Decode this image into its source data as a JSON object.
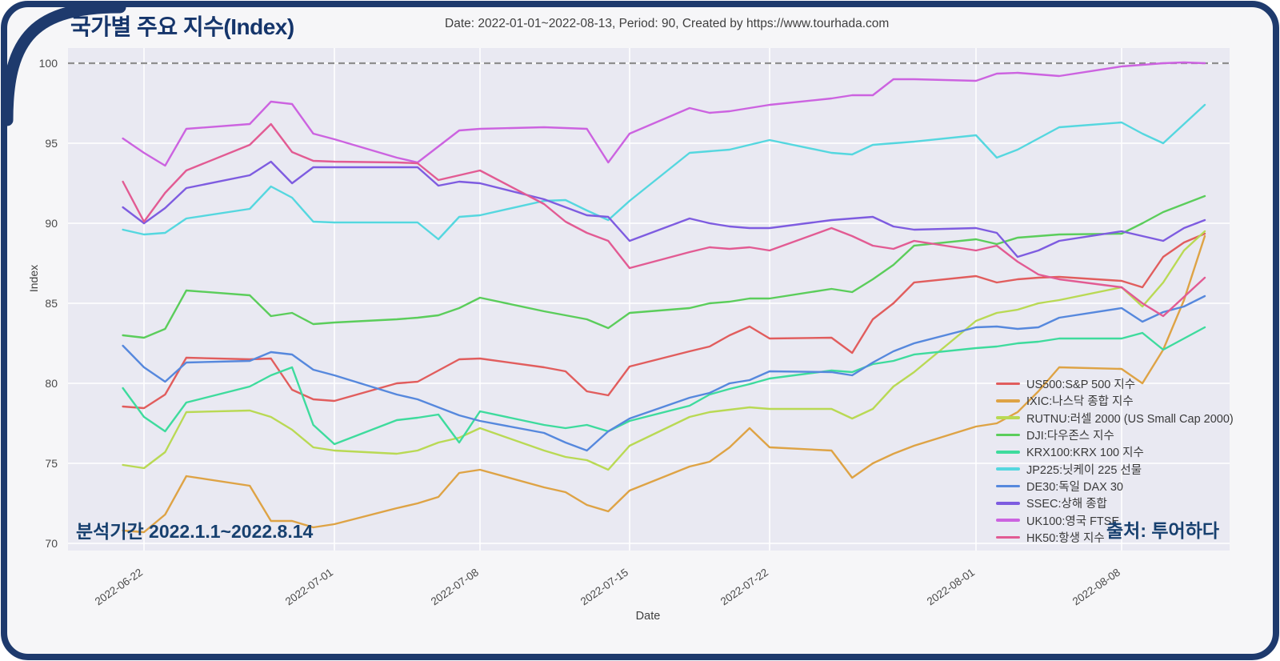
{
  "header": {
    "title": "국가별 주요 지수(Index)",
    "subtitle": "Date: 2022-01-01~2022-08-13, Period: 90, Created by https://www.tourhada.com"
  },
  "annotations": {
    "period_note": "분석기간 2022.1.1~2022.8.14",
    "source_note": "출처: 투어하다"
  },
  "frame": {
    "border_color": "#1e3a6d",
    "inner_background": "#f6f6f8"
  },
  "chart_data": {
    "type": "line",
    "xlabel": "Date",
    "ylabel": "Index",
    "ylim": [
      69.55,
      100.95
    ],
    "yticks": [
      70,
      75,
      80,
      85,
      90,
      95,
      100
    ],
    "grid": true,
    "plot_background": "#e9e9f2",
    "grid_color": "#ffffff",
    "reference_line": {
      "y": 100,
      "style": "dashed",
      "color": "#8f8f8f"
    },
    "legend_position": "lower right",
    "x_tick_labels": [
      "2022-06-22",
      "2022-07-01",
      "2022-07-08",
      "2022-07-15",
      "2022-07-22",
      "2022-08-01",
      "2022-08-08"
    ],
    "x_tick_cal": [
      1,
      10,
      17,
      24,
      31,
      41,
      48
    ],
    "dates": [
      "06-21",
      "06-22",
      "06-23",
      "06-24",
      "06-27",
      "06-28",
      "06-29",
      "06-30",
      "07-01",
      "07-04",
      "07-05",
      "07-06",
      "07-07",
      "07-08",
      "07-11",
      "07-12",
      "07-13",
      "07-14",
      "07-15",
      "07-18",
      "07-19",
      "07-20",
      "07-21",
      "07-22",
      "07-25",
      "07-26",
      "07-27",
      "07-28",
      "07-29",
      "08-01",
      "08-02",
      "08-03",
      "08-04",
      "08-05",
      "08-08",
      "08-09",
      "08-10",
      "08-11",
      "08-12"
    ],
    "cal_days": [
      0,
      1,
      2,
      3,
      6,
      7,
      8,
      9,
      10,
      13,
      14,
      15,
      16,
      17,
      20,
      21,
      22,
      23,
      24,
      27,
      28,
      29,
      30,
      31,
      34,
      35,
      36,
      37,
      38,
      41,
      42,
      43,
      44,
      45,
      48,
      49,
      50,
      51,
      52
    ],
    "series": [
      {
        "id": "US500",
        "label": "US500:S&P 500 지수",
        "color": "#e15d5d",
        "values": [
          78.55,
          78.45,
          79.3,
          81.6,
          81.5,
          81.55,
          79.6,
          79.0,
          78.9,
          80.0,
          80.1,
          80.8,
          81.5,
          81.55,
          81.0,
          80.75,
          79.5,
          79.25,
          81.05,
          82.0,
          82.3,
          83.0,
          83.55,
          82.8,
          82.85,
          81.9,
          84.0,
          85.0,
          86.3,
          86.7,
          86.3,
          86.5,
          86.6,
          86.65,
          86.4,
          86.0,
          87.9,
          88.8,
          89.35
        ]
      },
      {
        "id": "IXIC",
        "label": "IXIC:나스닥 종합 지수",
        "color": "#dea345",
        "values": [
          70.8,
          70.7,
          71.8,
          74.2,
          73.6,
          71.4,
          71.4,
          71.0,
          71.2,
          72.2,
          72.5,
          72.9,
          74.4,
          74.6,
          73.5,
          73.2,
          72.4,
          72.0,
          73.3,
          74.8,
          75.1,
          76.0,
          77.2,
          76.0,
          75.8,
          74.1,
          75.0,
          75.6,
          76.1,
          77.3,
          77.5,
          78.2,
          79.5,
          81.0,
          80.9,
          80.0,
          82.1,
          85.2,
          89.2
        ]
      },
      {
        "id": "RUTNU",
        "label": "RUTNU:러셀 2000 (US Small Cap 2000)",
        "color": "#b9d954",
        "values": [
          74.9,
          74.7,
          75.7,
          78.2,
          78.3,
          77.9,
          77.1,
          76.0,
          75.8,
          75.6,
          75.8,
          76.3,
          76.6,
          77.2,
          75.8,
          75.4,
          75.2,
          74.6,
          76.1,
          77.9,
          78.2,
          78.35,
          78.5,
          78.4,
          78.4,
          77.8,
          78.4,
          79.8,
          80.7,
          83.9,
          84.4,
          84.6,
          85.0,
          85.2,
          86.0,
          84.8,
          86.3,
          88.3,
          89.5
        ]
      },
      {
        "id": "DJI",
        "label": "DJI:다우존스 지수",
        "color": "#5bcd5b",
        "values": [
          83.0,
          82.85,
          83.4,
          85.8,
          85.5,
          84.2,
          84.4,
          83.7,
          83.8,
          84.0,
          84.1,
          84.25,
          84.7,
          85.35,
          84.5,
          84.25,
          84.0,
          83.45,
          84.4,
          84.7,
          85.0,
          85.1,
          85.3,
          85.3,
          85.9,
          85.7,
          86.5,
          87.4,
          88.6,
          89.0,
          88.7,
          89.1,
          89.2,
          89.3,
          89.35,
          90.0,
          90.7,
          91.2,
          91.7
        ]
      },
      {
        "id": "KRX100",
        "label": "KRX100:KRX 100 지수",
        "color": "#3edb9d",
        "values": [
          79.7,
          77.9,
          77.0,
          78.8,
          79.8,
          80.5,
          81.0,
          77.4,
          76.2,
          77.7,
          77.85,
          78.05,
          76.3,
          78.25,
          77.4,
          77.2,
          77.4,
          77.0,
          77.65,
          78.6,
          79.3,
          79.65,
          79.95,
          80.3,
          80.8,
          80.7,
          81.2,
          81.4,
          81.8,
          82.2,
          82.3,
          82.5,
          82.6,
          82.8,
          82.8,
          83.15,
          82.1,
          82.8,
          83.5
        ]
      },
      {
        "id": "JP225",
        "label": "JP225:닛케이 225 선물",
        "color": "#55d7df",
        "values": [
          89.6,
          89.3,
          89.4,
          90.3,
          90.9,
          92.3,
          91.6,
          90.1,
          90.05,
          90.05,
          90.05,
          89.0,
          90.4,
          90.5,
          91.4,
          91.45,
          90.8,
          90.2,
          91.4,
          94.4,
          94.5,
          94.6,
          94.9,
          95.2,
          94.4,
          94.3,
          94.9,
          95.0,
          95.1,
          95.5,
          94.1,
          94.6,
          95.3,
          96.0,
          96.3,
          95.6,
          95.0,
          96.2,
          97.4
        ]
      },
      {
        "id": "DE30",
        "label": "DE30:독일 DAX 30",
        "color": "#5688dd",
        "values": [
          82.35,
          81.0,
          80.1,
          81.3,
          81.4,
          81.95,
          81.8,
          80.85,
          80.5,
          79.3,
          79.0,
          78.5,
          78.0,
          77.65,
          76.9,
          76.3,
          75.8,
          77.0,
          77.8,
          79.1,
          79.4,
          80.0,
          80.2,
          80.75,
          80.7,
          80.5,
          81.3,
          82.0,
          82.5,
          83.5,
          83.55,
          83.4,
          83.5,
          84.1,
          84.7,
          83.85,
          84.45,
          84.8,
          85.45
        ]
      },
      {
        "id": "SSEC",
        "label": "SSEC:상해 종합",
        "color": "#7e5ce0",
        "values": [
          91.0,
          90.0,
          90.95,
          92.2,
          93.0,
          93.85,
          92.5,
          93.5,
          93.5,
          93.5,
          93.5,
          92.35,
          92.6,
          92.5,
          91.5,
          91.0,
          90.5,
          90.4,
          88.9,
          90.3,
          90.0,
          89.8,
          89.7,
          89.7,
          90.2,
          90.3,
          90.4,
          89.8,
          89.6,
          89.7,
          89.4,
          87.9,
          88.3,
          88.9,
          89.5,
          89.2,
          88.9,
          89.7,
          90.2
        ]
      },
      {
        "id": "UK100",
        "label": "UK100:영국 FTSE",
        "color": "#cc63e0",
        "values": [
          95.3,
          94.4,
          93.6,
          95.9,
          96.2,
          97.6,
          97.45,
          95.6,
          95.25,
          94.1,
          93.8,
          94.8,
          95.8,
          95.9,
          96.0,
          95.95,
          95.9,
          93.8,
          95.6,
          97.2,
          96.9,
          97.0,
          97.2,
          97.4,
          97.8,
          98.0,
          98.0,
          99.0,
          99.0,
          98.9,
          99.35,
          99.4,
          99.3,
          99.2,
          99.8,
          99.9,
          100.0,
          100.05,
          100.0
        ]
      },
      {
        "id": "HK50",
        "label": "HK50:항생 지수",
        "color": "#e25b93",
        "values": [
          92.6,
          90.1,
          91.9,
          93.3,
          94.9,
          96.2,
          94.45,
          93.9,
          93.85,
          93.8,
          93.75,
          92.7,
          93.0,
          93.3,
          91.2,
          90.1,
          89.4,
          88.9,
          87.2,
          88.2,
          88.5,
          88.4,
          88.5,
          88.3,
          89.7,
          89.2,
          88.6,
          88.4,
          88.9,
          88.3,
          88.6,
          87.6,
          86.8,
          86.5,
          86.0,
          85.0,
          84.2,
          85.4,
          86.6
        ]
      }
    ]
  }
}
